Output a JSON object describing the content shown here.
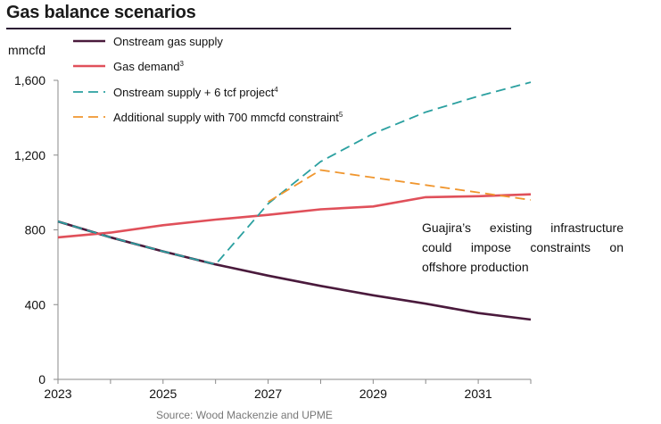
{
  "header": {
    "title": "Gas balance scenarios"
  },
  "chart_data": {
    "type": "line",
    "title": "Gas balance scenarios",
    "ylabel": "mmcfd",
    "xlabel": "",
    "xlim": [
      2023,
      2032
    ],
    "ylim": [
      0,
      1600
    ],
    "x_ticks": [
      "2023",
      "2025",
      "2027",
      "2029",
      "2031"
    ],
    "y_ticks": [
      "0",
      "400",
      "800",
      "1,200",
      "1,600"
    ],
    "grid": false,
    "legend_position": "top-left",
    "series": [
      {
        "name": "Onstream gas supply",
        "sup": "",
        "color": "#4a1a3c",
        "dash": "solid",
        "x": [
          2023,
          2024,
          2025,
          2026,
          2027,
          2028,
          2029,
          2030,
          2031,
          2032
        ],
        "y": [
          845,
          760,
          685,
          615,
          555,
          500,
          450,
          405,
          355,
          320
        ]
      },
      {
        "name": "Gas demand",
        "sup": "3",
        "color": "#e0505a",
        "dash": "solid",
        "x": [
          2023,
          2024,
          2025,
          2026,
          2027,
          2028,
          2029,
          2030,
          2031,
          2032
        ],
        "y": [
          760,
          785,
          825,
          855,
          880,
          910,
          925,
          975,
          980,
          990
        ]
      },
      {
        "name": "Onstream supply + 6 tcf project",
        "sup": "4",
        "color": "#2ba0a0",
        "dash": "dashed",
        "x": [
          2023,
          2024,
          2025,
          2026,
          2027,
          2028,
          2029,
          2030,
          2031,
          2032
        ],
        "y": [
          845,
          760,
          685,
          615,
          940,
          1165,
          1315,
          1430,
          1515,
          1590
        ]
      },
      {
        "name": "Additional supply with 700 mmcfd constraint",
        "sup": "5",
        "color": "#f0962e",
        "dash": "dashed",
        "x": [
          2027,
          2028,
          2029,
          2030,
          2031,
          2032
        ],
        "y": [
          950,
          1120,
          1080,
          1040,
          1000,
          960
        ]
      }
    ],
    "annotation": "Guajira’s existing infrastructure could impose constraints on offshore production"
  },
  "source": "Source: Wood Mackenzie and UPME"
}
